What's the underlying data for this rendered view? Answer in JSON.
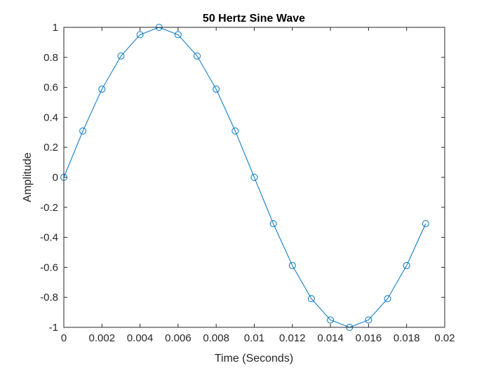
{
  "chart_data": {
    "type": "line",
    "title": "50 Hertz Sine Wave",
    "xlabel": "Time (Seconds)",
    "ylabel": "Amplitude",
    "xlim": [
      0,
      0.02
    ],
    "ylim": [
      -1,
      1
    ],
    "xticks": [
      0,
      0.002,
      0.004,
      0.006,
      0.008,
      0.01,
      0.012,
      0.014,
      0.016,
      0.018,
      0.02
    ],
    "xtick_labels": [
      "0",
      "0.002",
      "0.004",
      "0.006",
      "0.008",
      "0.01",
      "0.012",
      "0.014",
      "0.016",
      "0.018",
      "0.02"
    ],
    "yticks": [
      1,
      0.8,
      0.6,
      0.4,
      0.2,
      0,
      -0.2,
      -0.4,
      -0.6,
      -0.8,
      -1
    ],
    "ytick_labels": [
      "1",
      "0.8",
      "0.6",
      "0.4",
      "0.2",
      "0",
      "-0.2",
      "-0.4",
      "-0.6",
      "-0.8",
      "-1"
    ],
    "grid": false,
    "marker": "circle",
    "color": "#0072bd",
    "series": [
      {
        "x": [
          0,
          0.001,
          0.002,
          0.003,
          0.004,
          0.005,
          0.006,
          0.007,
          0.008,
          0.009,
          0.01,
          0.011,
          0.012,
          0.013,
          0.014,
          0.015,
          0.016,
          0.017,
          0.018,
          0.019
        ],
        "y": [
          0,
          0.309,
          0.588,
          0.809,
          0.951,
          1,
          0.951,
          0.809,
          0.588,
          0.309,
          0,
          -0.309,
          -0.588,
          -0.809,
          -0.951,
          -1,
          -0.951,
          -0.809,
          -0.588,
          -0.309
        ]
      }
    ]
  }
}
